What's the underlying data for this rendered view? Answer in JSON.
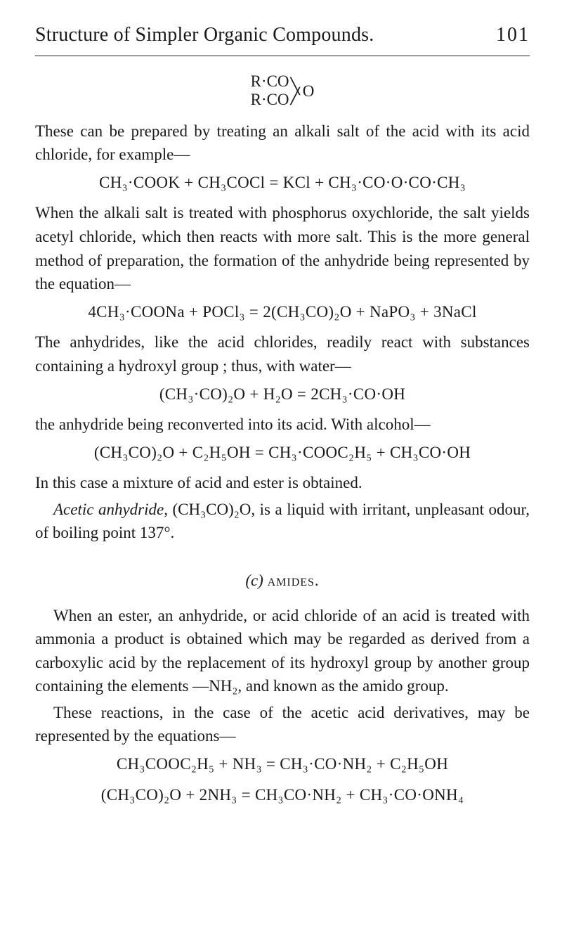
{
  "header": {
    "title": "Structure of Simpler Organic Compounds.",
    "page_number": "101"
  },
  "anhydride_formula": {
    "top": "R·CO",
    "bottom": "R·CO",
    "center_symbol_top": "╲",
    "center_symbol_bottom": "╱",
    "oxygen": "O"
  },
  "para1": "These can be prepared by treating an alkali salt of the acid with its acid chloride, for example—",
  "eq1": "CH₃·COOK + CH₃COCl = KCl + CH₃·CO·O·CO·CH₃",
  "para2": "When the alkali salt is treated with phosphorus oxy­chloride, the salt yields acetyl chloride, which then reacts with more salt.   This is the more general method of pre­paration, the formation of the anhydride being represented by the equation—",
  "eq2": "4CH₃·COONa + POCl₃ = 2(CH₃CO)₂O + NaPO₃ + 3NaCl",
  "para3": "The anhydrides, like the acid chlorides, readily react with substances containing a hydroxyl group ; thus, with water—",
  "eq3": "(CH₃·CO)₂O + H₂O = 2CH₃·CO·OH",
  "para4": "the anhydride being reconverted into its acid.   With alcohol—",
  "eq4": "(CH₃CO)₂O + C₂H₅OH = CH₃·COOC₂H₅ + CH₃CO·OH",
  "para5": "In this case a mixture of acid and ester is obtained.",
  "para6_pre": "Acetic anhydride",
  "para6_rest": ", (CH₃CO)₂O, is a liquid with irritant, unpleasant odour, of boiling point 137°.",
  "section_c": {
    "label": "(c)",
    "title": "amides."
  },
  "para7": "When an ester, an anhydride, or acid chloride of an acid is treated with ammonia a product is obtained which may be regarded as derived from a carboxylic acid by the replacement of its hydroxyl group by another group con­taining the elements —NH₂, and known as the amido group.",
  "para8": "These reactions, in the case of the acetic acid deriva­tives, may be represented by the equations—",
  "eq5": "CH₃COOC₂H₅ + NH₃ = CH₃·CO·NH₂ + C₂H₅OH",
  "eq6": "(CH₃CO)₂O + 2NH₃ = CH₃CO·NH₂ + CH₃·CO·ONH₄"
}
